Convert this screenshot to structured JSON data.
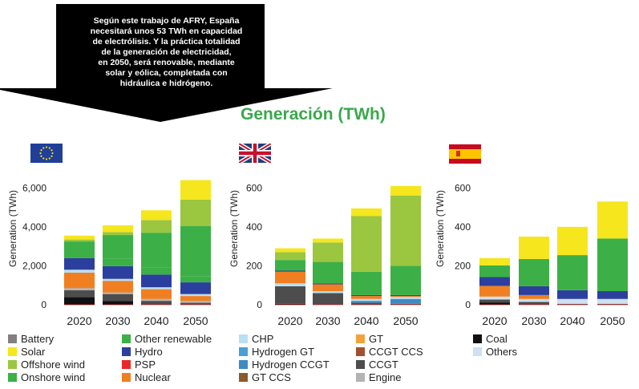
{
  "annotation": {
    "lines": [
      "Según este trabajo de AFRY, España",
      "necesitará unos 53 TWh en capacidad",
      "de electrólisis. Y la práctica totalidad",
      "de la generación de electricidad,",
      "en 2050, será renovable, mediante",
      "solar y eólica, completada con",
      "hidráulica e hidrógeno."
    ]
  },
  "title": "Generación (TWh)",
  "colors": {
    "Battery": "#808080",
    "Solar": "#f5e61e",
    "Offshore wind": "#9bc640",
    "Onshore wind": "#3cb046",
    "Other renewable": "#3cb046",
    "Hydro": "#2b3f9e",
    "PSP": "#e8282b",
    "Nuclear": "#f07f22",
    "CHP": "#b9dff2",
    "Hydrogen GT": "#4a9fd6",
    "Hydrogen CCGT": "#3e8bc2",
    "GT CCS": "#8b5a2b",
    "GT": "#f2a23a",
    "CCGT CCS": "#a0522d",
    "CCGT": "#4d4d4d",
    "Engine": "#b3b3b3",
    "Coal": "#111111",
    "Others": "#cfe0f0"
  },
  "chart_data": [
    {
      "type": "bar",
      "stacked": true,
      "region": "EU",
      "categories": [
        "2020",
        "2030",
        "2040",
        "2050"
      ],
      "ylabel": "Generation (TWh)",
      "ylim": [
        0,
        7000
      ],
      "yticks": [
        0,
        2000,
        4000,
        6000
      ],
      "ytick_labels": [
        "0",
        "2,000",
        "4,000",
        "6,000"
      ],
      "series": [
        {
          "name": "Coal",
          "values": [
            400,
            200,
            0,
            0
          ]
        },
        {
          "name": "CCGT",
          "values": [
            350,
            350,
            200,
            100
          ]
        },
        {
          "name": "Engine",
          "values": [
            100,
            80,
            100,
            100
          ]
        },
        {
          "name": "Nuclear",
          "values": [
            800,
            600,
            500,
            250
          ]
        },
        {
          "name": "CHP",
          "values": [
            150,
            100,
            100,
            100
          ]
        },
        {
          "name": "Hydro",
          "values": [
            600,
            650,
            650,
            600
          ]
        },
        {
          "name": "Other renewable",
          "values": [
            400,
            400,
            350,
            300
          ]
        },
        {
          "name": "Onshore wind",
          "values": [
            450,
            1200,
            1800,
            2600
          ]
        },
        {
          "name": "Offshore wind",
          "values": [
            100,
            150,
            650,
            1350
          ]
        },
        {
          "name": "Solar",
          "values": [
            200,
            350,
            500,
            1000
          ]
        }
      ]
    },
    {
      "type": "bar",
      "stacked": true,
      "region": "UK",
      "categories": [
        "2020",
        "2030",
        "2040",
        "2050"
      ],
      "ylabel": "Generation (TWh)",
      "ylim": [
        0,
        700
      ],
      "yticks": [
        0,
        200,
        400,
        600
      ],
      "ytick_labels": [
        "0",
        "200",
        "400",
        "600"
      ],
      "series": [
        {
          "name": "Coal",
          "values": [
            5,
            0,
            0,
            0
          ]
        },
        {
          "name": "CCGT",
          "values": [
            90,
            60,
            10,
            5
          ]
        },
        {
          "name": "Hydrogen CCGT",
          "values": [
            0,
            0,
            10,
            25
          ]
        },
        {
          "name": "CHP",
          "values": [
            15,
            10,
            10,
            10
          ]
        },
        {
          "name": "Nuclear",
          "values": [
            60,
            35,
            15,
            5
          ]
        },
        {
          "name": "Hydro",
          "values": [
            5,
            5,
            5,
            5
          ]
        },
        {
          "name": "Onshore wind",
          "values": [
            55,
            110,
            120,
            150
          ]
        },
        {
          "name": "Offshore wind",
          "values": [
            40,
            100,
            285,
            360
          ]
        },
        {
          "name": "Solar",
          "values": [
            20,
            20,
            40,
            50
          ]
        }
      ]
    },
    {
      "type": "bar",
      "stacked": true,
      "region": "Spain",
      "categories": [
        "2020",
        "2030",
        "2040",
        "2050"
      ],
      "ylabel": "Generation (TWh)",
      "ylim": [
        0,
        700
      ],
      "yticks": [
        0,
        200,
        400,
        600
      ],
      "ytick_labels": [
        "0",
        "200",
        "400",
        "600"
      ],
      "series": [
        {
          "name": "Coal",
          "values": [
            12,
            0,
            0,
            0
          ]
        },
        {
          "name": "CCGT",
          "values": [
            15,
            15,
            5,
            5
          ]
        },
        {
          "name": "Others",
          "values": [
            15,
            15,
            25,
            25
          ]
        },
        {
          "name": "Nuclear",
          "values": [
            55,
            20,
            0,
            0
          ]
        },
        {
          "name": "Hydro",
          "values": [
            45,
            45,
            45,
            40
          ]
        },
        {
          "name": "Onshore wind",
          "values": [
            60,
            140,
            180,
            270
          ]
        },
        {
          "name": "Solar",
          "values": [
            38,
            115,
            145,
            190
          ]
        }
      ]
    }
  ],
  "legend": [
    [
      "Battery",
      "Solar",
      "Offshore wind",
      "Onshore wind"
    ],
    [
      "Other renewable",
      "Hydro",
      "PSP",
      "Nuclear"
    ],
    [
      "CHP",
      "Hydrogen GT",
      "Hydrogen CCGT",
      "GT CCS"
    ],
    [
      "GT",
      "CCGT CCS",
      "CCGT",
      "Engine"
    ],
    [
      "Coal",
      "Others"
    ]
  ]
}
